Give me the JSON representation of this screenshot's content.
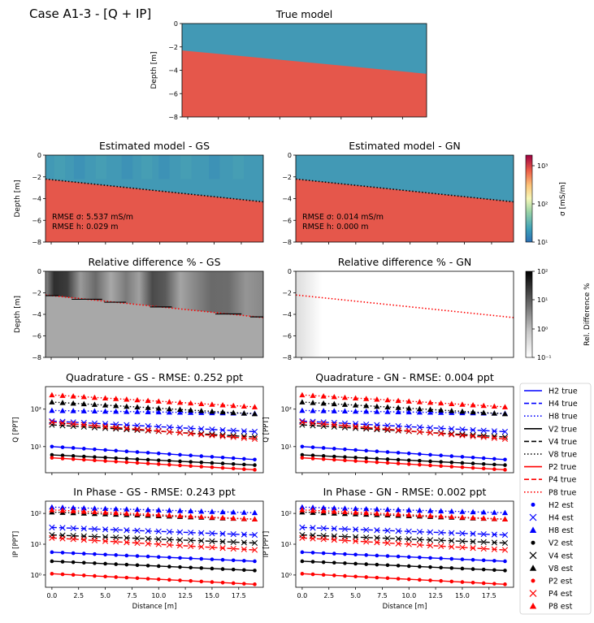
{
  "figure": {
    "suptitle": "Case A1-3 - [Q + IP]",
    "cb_sigma_label": "σ [mS/m]",
    "cb_sigma_ticks": [
      "10³",
      "10²",
      "10¹"
    ],
    "cb_rel_label": "Rel. Difference %",
    "cb_rel_ticks": [
      "10²",
      "10¹",
      "10⁰",
      "10⁻¹"
    ]
  },
  "colors": {
    "resistive_layer": "#4299B5",
    "conductive_layer": "#E5574B",
    "H": "#0000FF",
    "V": "#000000",
    "P": "#FF0000"
  },
  "chart_data": [
    {
      "type": "heatmap",
      "id": "true_model",
      "title": "True model",
      "ylabel": "Depth [m]",
      "ylim": [
        -8,
        0
      ],
      "yticks": [
        "0",
        "−2",
        "−4",
        "−6",
        "−8"
      ],
      "interface_depth_start": -2.3,
      "interface_depth_end": -4.3
    },
    {
      "type": "heatmap",
      "id": "est_gs",
      "title": "Estimated model - GS",
      "ylabel": "Depth [m]",
      "ylim": [
        -8,
        0
      ],
      "yticks": [
        "0",
        "−2",
        "−4",
        "−6",
        "−8"
      ],
      "annotations": [
        "RMSE σ: 5.537 mS/m",
        "RMSE h: 0.029 m"
      ],
      "interface_depth_start": -2.2,
      "interface_depth_end": -4.3
    },
    {
      "type": "heatmap",
      "id": "est_gn",
      "title": "Estimated model - GN",
      "ylim": [
        -8,
        0
      ],
      "yticks": [
        "0",
        "−2",
        "−4",
        "−6",
        "−8"
      ],
      "annotations": [
        "RMSE σ: 0.014 mS/m",
        "RMSE h: 0.000 m"
      ],
      "interface_depth_start": -2.2,
      "interface_depth_end": -4.3
    },
    {
      "type": "heatmap",
      "id": "rel_gs",
      "title": "Relative difference % - GS",
      "ylabel": "Depth [m]",
      "ylim": [
        -8,
        0
      ],
      "yticks": [
        "0",
        "−2",
        "−4",
        "−6",
        "−8"
      ]
    },
    {
      "type": "heatmap",
      "id": "rel_gn",
      "title": "Relative difference % - GN",
      "ylim": [
        -8,
        0
      ],
      "yticks": [
        "0",
        "−2",
        "−4",
        "−6",
        "−8"
      ]
    },
    {
      "type": "line",
      "id": "quad",
      "titles": [
        "Quadrature - GS - RMSE: 0.252 ppt",
        "Quadrature - GN - RMSE: 0.004 ppt"
      ],
      "ylabel": "Q [PPT]",
      "yscale": "log",
      "ylim": [
        2,
        400
      ],
      "yticks": [
        "10²",
        "10¹"
      ],
      "x": [
        0,
        1,
        2,
        3,
        4,
        5,
        6,
        7,
        8,
        9,
        10,
        11,
        12,
        13,
        14,
        15,
        16,
        17,
        18,
        19
      ],
      "series": [
        {
          "name": "H2",
          "color_key": "H",
          "start": 10,
          "end": 4.5,
          "marker": "dot"
        },
        {
          "name": "H4",
          "color_key": "H",
          "start": 48,
          "end": 25,
          "marker": "x"
        },
        {
          "name": "H8",
          "color_key": "H",
          "start": 92,
          "end": 77,
          "marker": "tri"
        },
        {
          "name": "V2",
          "color_key": "V",
          "start": 6,
          "end": 3.2,
          "marker": "dot"
        },
        {
          "name": "V4",
          "color_key": "V",
          "start": 38,
          "end": 18,
          "marker": "x"
        },
        {
          "name": "V8",
          "color_key": "V",
          "start": 155,
          "end": 75,
          "marker": "tri"
        },
        {
          "name": "P2",
          "color_key": "P",
          "start": 5,
          "end": 2.4,
          "marker": "dot"
        },
        {
          "name": "P4",
          "color_key": "P",
          "start": 45,
          "end": 16,
          "marker": "x"
        },
        {
          "name": "P8",
          "color_key": "P",
          "start": 240,
          "end": 115,
          "marker": "tri"
        }
      ]
    },
    {
      "type": "line",
      "id": "ip",
      "titles": [
        "In Phase - GS - RMSE: 0.243 ppt",
        "In Phase - GN - RMSE: 0.002 ppt"
      ],
      "ylabel": "IP [PPT]",
      "yscale": "log",
      "ylim": [
        0.4,
        250
      ],
      "yticks": [
        "10²",
        "10¹",
        "10⁰"
      ],
      "xlabel": "Distance [m]",
      "xticks": [
        "0.0",
        "2.5",
        "5.0",
        "7.5",
        "10.0",
        "12.5",
        "15.0",
        "17.5"
      ],
      "x": [
        0,
        1,
        2,
        3,
        4,
        5,
        6,
        7,
        8,
        9,
        10,
        11,
        12,
        13,
        14,
        15,
        16,
        17,
        18,
        19
      ],
      "series": [
        {
          "name": "H2",
          "color_key": "H",
          "start": 5.5,
          "end": 2.8,
          "marker": "dot"
        },
        {
          "name": "H4",
          "color_key": "H",
          "start": 35,
          "end": 20,
          "marker": "x"
        },
        {
          "name": "H8",
          "color_key": "H",
          "start": 160,
          "end": 105,
          "marker": "tri"
        },
        {
          "name": "V2",
          "color_key": "V",
          "start": 2.8,
          "end": 1.4,
          "marker": "dot"
        },
        {
          "name": "V4",
          "color_key": "V",
          "start": 20,
          "end": 11,
          "marker": "x"
        },
        {
          "name": "V8",
          "color_key": "V",
          "start": 110,
          "end": 65,
          "marker": "tri"
        },
        {
          "name": "P2",
          "color_key": "P",
          "start": 1.1,
          "end": 0.5,
          "marker": "dot"
        },
        {
          "name": "P4",
          "color_key": "P",
          "start": 16,
          "end": 6.5,
          "marker": "x"
        },
        {
          "name": "P8",
          "color_key": "P",
          "start": 130,
          "end": 65,
          "marker": "tri"
        }
      ]
    }
  ],
  "legend": [
    {
      "label": "H2 true",
      "color_key": "H",
      "style": "solid"
    },
    {
      "label": "H4 true",
      "color_key": "H",
      "style": "dashed"
    },
    {
      "label": "H8 true",
      "color_key": "H",
      "style": "dotted"
    },
    {
      "label": "V2 true",
      "color_key": "V",
      "style": "solid"
    },
    {
      "label": "V4 true",
      "color_key": "V",
      "style": "dashed"
    },
    {
      "label": "V8 true",
      "color_key": "V",
      "style": "dotted"
    },
    {
      "label": "P2 true",
      "color_key": "P",
      "style": "solid"
    },
    {
      "label": "P4 true",
      "color_key": "P",
      "style": "dashed"
    },
    {
      "label": "P8 true",
      "color_key": "P",
      "style": "dotted"
    },
    {
      "label": "H2 est",
      "color_key": "H",
      "style": "dot"
    },
    {
      "label": "H4 est",
      "color_key": "H",
      "style": "x"
    },
    {
      "label": "H8 est",
      "color_key": "H",
      "style": "tri"
    },
    {
      "label": "V2 est",
      "color_key": "V",
      "style": "dot"
    },
    {
      "label": "V4 est",
      "color_key": "V",
      "style": "x"
    },
    {
      "label": "V8 est",
      "color_key": "V",
      "style": "tri"
    },
    {
      "label": "P2 est",
      "color_key": "P",
      "style": "dot"
    },
    {
      "label": "P4 est",
      "color_key": "P",
      "style": "x"
    },
    {
      "label": "P8 est",
      "color_key": "P",
      "style": "tri"
    }
  ]
}
